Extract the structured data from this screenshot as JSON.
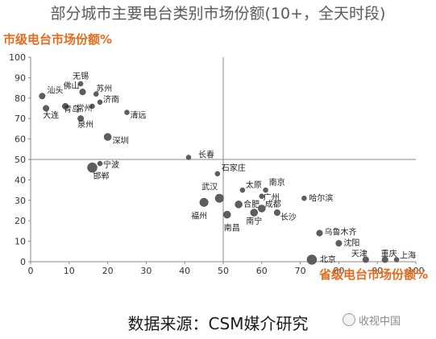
{
  "chart_data": {
    "type": "scatter",
    "title": "部分城市主要电台类别市场份额(10+，全天时段)",
    "xlabel": "省级电台市场份额%",
    "ylabel": "市级电台市场份额%",
    "source": "数据来源：CSM媒介研究",
    "xlim": [
      0,
      100
    ],
    "ylim": [
      0,
      100
    ],
    "xticks": [
      0,
      10,
      20,
      30,
      40,
      50,
      60,
      70,
      80,
      90,
      100
    ],
    "yticks": [
      0,
      10,
      20,
      30,
      40,
      50,
      60,
      70,
      80,
      90,
      100
    ],
    "grid": false,
    "reference_lines": {
      "x": 50,
      "y": 50
    },
    "colors": {
      "point": "#5e5e5e",
      "axis_title": "#e36c1e",
      "axes": "#888888"
    },
    "points": [
      {
        "name": "无锡",
        "x": 13,
        "y": 87,
        "size": 1
      },
      {
        "name": "佛山",
        "x": 13.5,
        "y": 83,
        "size": 1.5
      },
      {
        "name": "苏州",
        "x": 17,
        "y": 82,
        "size": 1
      },
      {
        "name": "汕头",
        "x": 3,
        "y": 81,
        "size": 1.5
      },
      {
        "name": "济南",
        "x": 18,
        "y": 78,
        "size": 1
      },
      {
        "name": "常州",
        "x": 16,
        "y": 76,
        "size": 1
      },
      {
        "name": "大连",
        "x": 4,
        "y": 75,
        "size": 1.5
      },
      {
        "name": "青岛",
        "x": 9,
        "y": 76,
        "size": 1.5
      },
      {
        "name": "清远",
        "x": 25,
        "y": 73,
        "size": 1
      },
      {
        "name": "泉州",
        "x": 13,
        "y": 70,
        "size": 1.5
      },
      {
        "name": "深圳",
        "x": 20,
        "y": 61,
        "size": 2
      },
      {
        "name": "长春",
        "x": 41,
        "y": 51,
        "size": 1
      },
      {
        "name": "宁波",
        "x": 18,
        "y": 48,
        "size": 1
      },
      {
        "name": "邯郸",
        "x": 16,
        "y": 46,
        "size": 3
      },
      {
        "name": "石家庄",
        "x": 48.5,
        "y": 43,
        "size": 1
      },
      {
        "name": "南京",
        "x": 61,
        "y": 35,
        "size": 1
      },
      {
        "name": "太原",
        "x": 55,
        "y": 35,
        "size": 1
      },
      {
        "name": "武汉",
        "x": 49,
        "y": 31,
        "size": 2.5
      },
      {
        "name": "广州",
        "x": 60,
        "y": 32,
        "size": 1
      },
      {
        "name": "哈尔滨",
        "x": 71,
        "y": 31,
        "size": 1
      },
      {
        "name": "合肥",
        "x": 54,
        "y": 28,
        "size": 2
      },
      {
        "name": "成都",
        "x": 60,
        "y": 26,
        "size": 2
      },
      {
        "name": "福州",
        "x": 45,
        "y": 29,
        "size": 2.5
      },
      {
        "name": "南宁",
        "x": 58,
        "y": 24,
        "size": 2
      },
      {
        "name": "长沙",
        "x": 64,
        "y": 24,
        "size": 1.5
      },
      {
        "name": "南昌",
        "x": 51,
        "y": 23,
        "size": 2
      },
      {
        "name": "乌鲁木齐",
        "x": 75,
        "y": 14,
        "size": 1.5
      },
      {
        "name": "沈阳",
        "x": 80,
        "y": 9,
        "size": 1.5
      },
      {
        "name": "北京",
        "x": 73,
        "y": 1,
        "size": 3
      },
      {
        "name": "天津",
        "x": 87,
        "y": 1,
        "size": 1.5
      },
      {
        "name": "重庆",
        "x": 92,
        "y": 1,
        "size": 1.5
      },
      {
        "name": "上海",
        "x": 95,
        "y": 1,
        "size": 1
      }
    ]
  },
  "watermark": {
    "text": "收视中国"
  }
}
